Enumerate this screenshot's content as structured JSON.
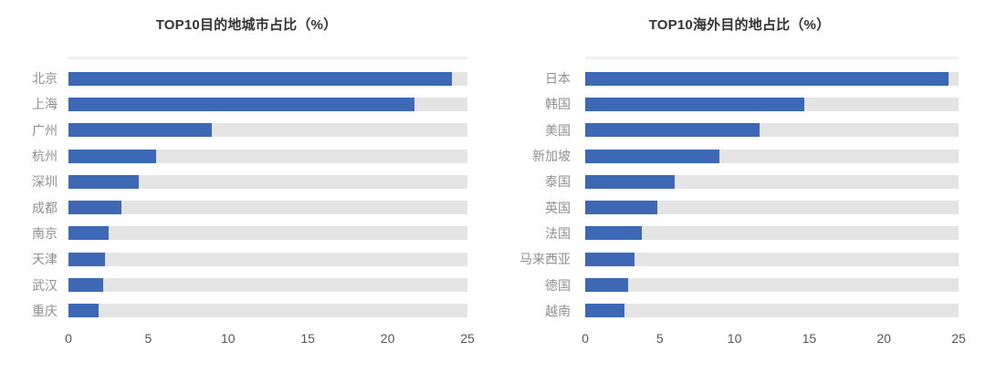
{
  "colors": {
    "bar_fill": "#3d68b5",
    "bar_track": "#e4e4e4",
    "category_label": "#8f8f8f",
    "axis_tick": "#565656",
    "title": "#333333"
  },
  "chart_data": [
    {
      "type": "bar",
      "orientation": "horizontal",
      "title": "TOP10目的地城市占比（%）",
      "categories": [
        "北京",
        "上海",
        "广州",
        "杭州",
        "深圳",
        "成都",
        "南京",
        "天津",
        "武汉",
        "重庆"
      ],
      "values": [
        24.0,
        21.7,
        9.0,
        5.5,
        4.4,
        3.3,
        2.5,
        2.3,
        2.2,
        1.9
      ],
      "xlim": [
        0,
        25
      ],
      "xticks": [
        0,
        5,
        10,
        15,
        20,
        25
      ],
      "xlabel": "",
      "ylabel": "",
      "grid": false,
      "legend": false
    },
    {
      "type": "bar",
      "orientation": "horizontal",
      "title": "TOP10海外目的地占比（%）",
      "categories": [
        "日本",
        "韩国",
        "美国",
        "新加坡",
        "泰国",
        "英国",
        "法国",
        "马来西亚",
        "德国",
        "越南"
      ],
      "values": [
        24.3,
        14.7,
        11.7,
        9.0,
        6.0,
        4.8,
        3.8,
        3.3,
        2.9,
        2.6
      ],
      "xlim": [
        0,
        25
      ],
      "xticks": [
        0,
        5,
        10,
        15,
        20,
        25
      ],
      "xlabel": "",
      "ylabel": "",
      "grid": false,
      "legend": false
    }
  ]
}
